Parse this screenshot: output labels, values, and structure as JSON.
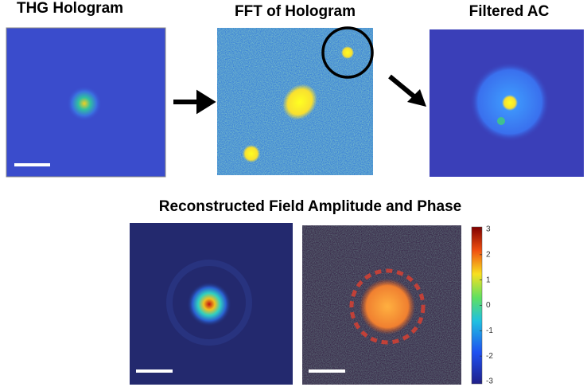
{
  "panels": [
    {
      "title": "THG Hologram"
    },
    {
      "title": "FFT of Hologram"
    },
    {
      "title": "Filtered AC"
    }
  ],
  "reconstruction": {
    "title": "Reconstructed Field Amplitude and Phase"
  },
  "colorbar": {
    "lim": [
      -3,
      3
    ],
    "ticks": [
      3,
      2,
      1,
      0,
      -1,
      -2,
      -3
    ]
  }
}
